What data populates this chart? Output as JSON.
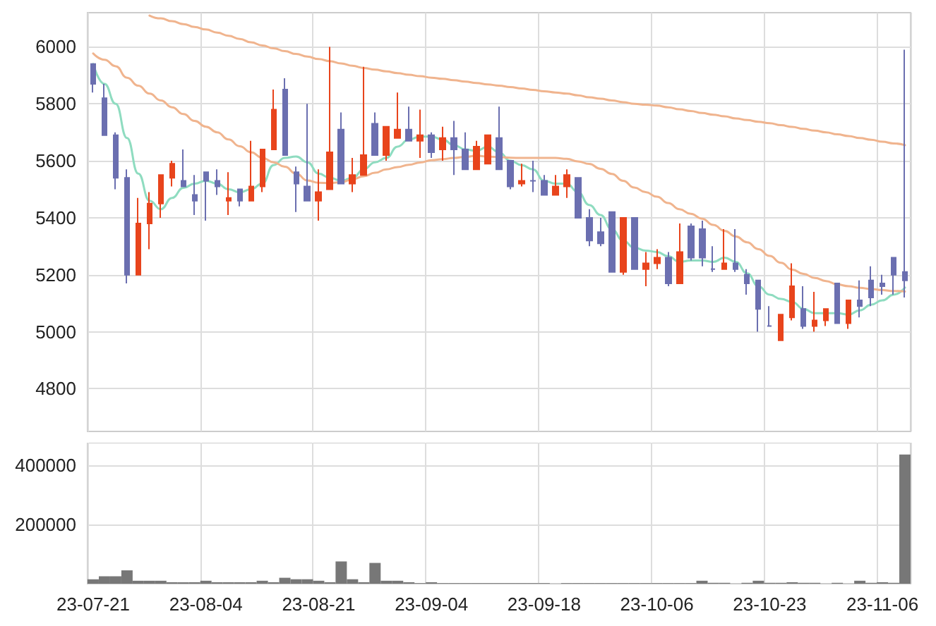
{
  "chart_data": [
    {
      "type": "candlestick",
      "categories": [
        null,
        null,
        null,
        null,
        null,
        null,
        null,
        null,
        null,
        null,
        null,
        null,
        null,
        null,
        null,
        null,
        null,
        null,
        null,
        null,
        null,
        null,
        null,
        null,
        null,
        null,
        null,
        null,
        null,
        null,
        null,
        null,
        null,
        null,
        null,
        null,
        null,
        null,
        null,
        null,
        null,
        null,
        null,
        null,
        null,
        null,
        null,
        null,
        null,
        null,
        null,
        null,
        null,
        null,
        null,
        null,
        null,
        null,
        null,
        null,
        null,
        null,
        null,
        null,
        null,
        null,
        null,
        null,
        null,
        null,
        null,
        null,
        null
      ],
      "ohlc": [
        [
          5940,
          5940,
          5840,
          5870
        ],
        [
          5820,
          5870,
          5690,
          5690
        ],
        [
          5690,
          5700,
          5500,
          5540
        ],
        [
          5540,
          5570,
          5170,
          5200
        ],
        [
          5200,
          5470,
          5200,
          5380
        ],
        [
          5380,
          5490,
          5290,
          5450
        ],
        [
          5450,
          5550,
          5400,
          5550
        ],
        [
          5540,
          5600,
          5510,
          5590
        ],
        [
          5530,
          5640,
          5510,
          5510
        ],
        [
          5480,
          5550,
          5410,
          5460
        ],
        [
          5560,
          5560,
          5390,
          5530
        ],
        [
          5530,
          5570,
          5480,
          5510
        ],
        [
          5460,
          5560,
          5410,
          5470
        ],
        [
          5500,
          5500,
          5440,
          5460
        ],
        [
          5460,
          5670,
          5460,
          5510
        ],
        [
          5510,
          5640,
          5490,
          5640
        ],
        [
          5640,
          5850,
          5640,
          5780
        ],
        [
          5850,
          5890,
          5620,
          5620
        ],
        [
          5560,
          5580,
          5420,
          5520
        ],
        [
          5510,
          5800,
          5460,
          5460
        ],
        [
          5460,
          5570,
          5390,
          5490
        ],
        [
          5500,
          6000,
          5500,
          5630
        ],
        [
          5710,
          5770,
          5520,
          5520
        ],
        [
          5520,
          5610,
          5490,
          5550
        ],
        [
          5550,
          5930,
          5550,
          5620
        ],
        [
          5730,
          5770,
          5620,
          5620
        ],
        [
          5620,
          5720,
          5600,
          5720
        ],
        [
          5680,
          5840,
          5680,
          5710
        ],
        [
          5710,
          5790,
          5670,
          5670
        ],
        [
          5670,
          5780,
          5610,
          5690
        ],
        [
          5690,
          5700,
          5610,
          5630
        ],
        [
          5640,
          5720,
          5600,
          5680
        ],
        [
          5680,
          5740,
          5550,
          5640
        ],
        [
          5640,
          5700,
          5570,
          5570
        ],
        [
          5570,
          5670,
          5570,
          5650
        ],
        [
          5590,
          5690,
          5590,
          5690
        ],
        [
          5680,
          5790,
          5570,
          5570
        ],
        [
          5600,
          5600,
          5500,
          5510
        ],
        [
          5520,
          5590,
          5510,
          5530
        ],
        [
          5530,
          5600,
          5490,
          5530
        ],
        [
          5530,
          5550,
          5480,
          5480
        ],
        [
          5480,
          5550,
          5480,
          5510
        ],
        [
          5510,
          5570,
          5470,
          5550
        ],
        [
          5540,
          5540,
          5400,
          5400
        ],
        [
          5400,
          5430,
          5300,
          5320
        ],
        [
          5350,
          5400,
          5300,
          5310
        ],
        [
          5420,
          5420,
          5210,
          5210
        ],
        [
          5210,
          5400,
          5200,
          5400
        ],
        [
          5400,
          5400,
          5220,
          5220
        ],
        [
          5220,
          5280,
          5160,
          5240
        ],
        [
          5240,
          5290,
          5220,
          5260
        ],
        [
          5260,
          5280,
          5160,
          5170
        ],
        [
          5170,
          5380,
          5170,
          5280
        ],
        [
          5370,
          5380,
          5250,
          5260
        ],
        [
          5360,
          5390,
          5230,
          5260
        ],
        [
          5220,
          5300,
          5210,
          5220
        ],
        [
          5220,
          5360,
          5220,
          5240
        ],
        [
          5240,
          5360,
          5210,
          5220
        ],
        [
          5200,
          5220,
          5130,
          5170
        ],
        [
          5180,
          5180,
          5000,
          5080
        ],
        [
          5020,
          5090,
          5020,
          5020
        ],
        [
          4970,
          5060,
          4970,
          5060
        ],
        [
          5050,
          5240,
          5040,
          5160
        ],
        [
          5080,
          5160,
          5010,
          5020
        ],
        [
          5020,
          5140,
          5000,
          5040
        ],
        [
          5040,
          5080,
          5020,
          5080
        ],
        [
          5170,
          5170,
          5030,
          5030
        ],
        [
          5030,
          5110,
          5010,
          5110
        ],
        [
          5110,
          5180,
          5050,
          5090
        ],
        [
          5180,
          5230,
          5090,
          5120
        ],
        [
          5170,
          5200,
          5130,
          5160
        ],
        [
          5260,
          5260,
          5130,
          5200
        ],
        [
          5210,
          5990,
          5120,
          5180
        ]
      ],
      "colors": [
        "#6b6fb0",
        "#6b6fb0",
        "#6b6fb0",
        "#6b6fb0",
        "#e8441c",
        "#e8441c",
        "#e8441c",
        "#e8441c",
        "#6b6fb0",
        "#6b6fb0",
        "#6b6fb0",
        "#6b6fb0",
        "#e8441c",
        "#6b6fb0",
        "#e8441c",
        "#e8441c",
        "#e8441c",
        "#6b6fb0",
        "#6b6fb0",
        "#6b6fb0",
        "#e8441c",
        "#e8441c",
        "#6b6fb0",
        "#e8441c",
        "#e8441c",
        "#6b6fb0",
        "#e8441c",
        "#e8441c",
        "#6b6fb0",
        "#e8441c",
        "#6b6fb0",
        "#e8441c",
        "#6b6fb0",
        "#6b6fb0",
        "#e8441c",
        "#e8441c",
        "#6b6fb0",
        "#6b6fb0",
        "#e8441c",
        "#6b6fb0",
        "#6b6fb0",
        "#e8441c",
        "#e8441c",
        "#6b6fb0",
        "#6b6fb0",
        "#6b6fb0",
        "#6b6fb0",
        "#e8441c",
        "#6b6fb0",
        "#e8441c",
        "#e8441c",
        "#6b6fb0",
        "#e8441c",
        "#6b6fb0",
        "#6b6fb0",
        "#6b6fb0",
        "#e8441c",
        "#6b6fb0",
        "#6b6fb0",
        "#6b6fb0",
        "#6b6fb0",
        "#e8441c",
        "#e8441c",
        "#6b6fb0",
        "#e8441c",
        "#e8441c",
        "#6b6fb0",
        "#e8441c",
        "#6b6fb0",
        "#6b6fb0",
        "#6b6fb0",
        "#6b6fb0",
        "#6b6fb0"
      ],
      "series": [
        {
          "type": "line",
          "color": "#8fdcc0",
          "values": [
            5940,
            5870,
            5800,
            5680,
            5555,
            5460,
            5430,
            5470,
            5505,
            5520,
            5530,
            5520,
            5500,
            5490,
            5500,
            5520,
            5585,
            5610,
            5615,
            5595,
            5555,
            5540,
            5530,
            5540,
            5570,
            5595,
            5610,
            5650,
            5675,
            5685,
            5685,
            5675,
            5655,
            5640,
            5635,
            5650,
            5630,
            5600,
            5585,
            5570,
            5530,
            5520,
            5520,
            5490,
            5445,
            5410,
            5360,
            5320,
            5295,
            5285,
            5280,
            5265,
            5245,
            5250,
            5250,
            5245,
            5260,
            5245,
            5205,
            5160,
            5130,
            5115,
            5105,
            5080,
            5065,
            5065,
            5065,
            5060,
            5075,
            5095,
            5110,
            5130,
            5155
          ]
        },
        {
          "type": "line",
          "color": "#f0b48e",
          "values": [
            5977,
            5955,
            5932,
            5892,
            5864,
            5836,
            5812,
            5788,
            5764,
            5740,
            5720,
            5700,
            5675,
            5651,
            5630,
            5611,
            5595,
            5579,
            5555,
            5531,
            5523,
            5522,
            5525,
            5535,
            5546,
            5558,
            5570,
            5578,
            5586,
            5594,
            5602,
            5606,
            5610,
            5614,
            5618,
            5615,
            5613,
            5611,
            5610,
            5610,
            5610,
            5610,
            5607,
            5598,
            5589,
            5572,
            5554,
            5530,
            5506,
            5490,
            5474,
            5452,
            5430,
            5414,
            5397,
            5375,
            5354,
            5334,
            5314,
            5290,
            5266,
            5242,
            5218,
            5203,
            5189,
            5178,
            5166,
            5160,
            5154,
            5150,
            5146,
            5143,
            5141
          ]
        },
        {
          "type": "line",
          "color": "#f0b48e",
          "values": [
            null,
            null,
            null,
            null,
            null,
            6110,
            6100,
            6090,
            6080,
            6070,
            6061,
            6050,
            6039,
            6028,
            6016,
            6005,
            5995,
            5985,
            5975,
            5966,
            5957,
            5950,
            5942,
            5934,
            5926,
            5920,
            5914,
            5908,
            5902,
            5897,
            5892,
            5888,
            5883,
            5878,
            5873,
            5868,
            5864,
            5859,
            5854,
            5849,
            5844,
            5840,
            5836,
            5830,
            5823,
            5818,
            5812,
            5806,
            5800,
            5797,
            5794,
            5788,
            5781,
            5775,
            5768,
            5762,
            5756,
            5749,
            5743,
            5737,
            5732,
            5725,
            5719,
            5712,
            5706,
            5700,
            5693,
            5687,
            5680,
            5674,
            5667,
            5661,
            5655
          ]
        }
      ],
      "ylim": [
        4650,
        6120
      ],
      "yticks": [
        4800,
        5000,
        5200,
        5400,
        5600,
        5800,
        6000
      ],
      "grid": true,
      "marker": "none"
    },
    {
      "type": "bar",
      "categories": [
        "23-07-21",
        null,
        null,
        null,
        null,
        null,
        null,
        null,
        null,
        null,
        "23-08-04",
        null,
        null,
        null,
        null,
        null,
        null,
        null,
        null,
        null,
        "23-08-21",
        null,
        null,
        null,
        null,
        null,
        null,
        null,
        null,
        null,
        "23-09-04",
        null,
        null,
        null,
        null,
        null,
        null,
        null,
        null,
        null,
        "23-09-18",
        null,
        null,
        null,
        null,
        null,
        null,
        null,
        null,
        null,
        "23-10-06",
        null,
        null,
        null,
        null,
        null,
        null,
        null,
        null,
        null,
        "23-10-23",
        null,
        null,
        null,
        null,
        null,
        null,
        null,
        null,
        null,
        "23-11-06",
        null,
        null
      ],
      "values": [
        15000,
        25000,
        25000,
        45000,
        10000,
        10000,
        10000,
        5000,
        5000,
        5000,
        10000,
        5000,
        5000,
        5000,
        5000,
        10000,
        5000,
        20000,
        15000,
        15000,
        10000,
        5000,
        75000,
        15000,
        5000,
        70000,
        10000,
        10000,
        5000,
        2000,
        5000,
        2000,
        2000,
        2000,
        2000,
        2000,
        2000,
        2000,
        2000,
        2000,
        2000,
        0,
        2000,
        2000,
        2000,
        2000,
        2000,
        2000,
        2000,
        2000,
        2000,
        2000,
        2000,
        2000,
        10000,
        3000,
        3000,
        0,
        3000,
        10000,
        3000,
        3000,
        5000,
        3000,
        3000,
        0,
        3000,
        0,
        10000,
        3000,
        5000,
        3000,
        435000
      ],
      "color": "#777777",
      "ylim": [
        0,
        475000
      ],
      "yticks": [
        200000,
        400000
      ],
      "grid": true
    }
  ]
}
